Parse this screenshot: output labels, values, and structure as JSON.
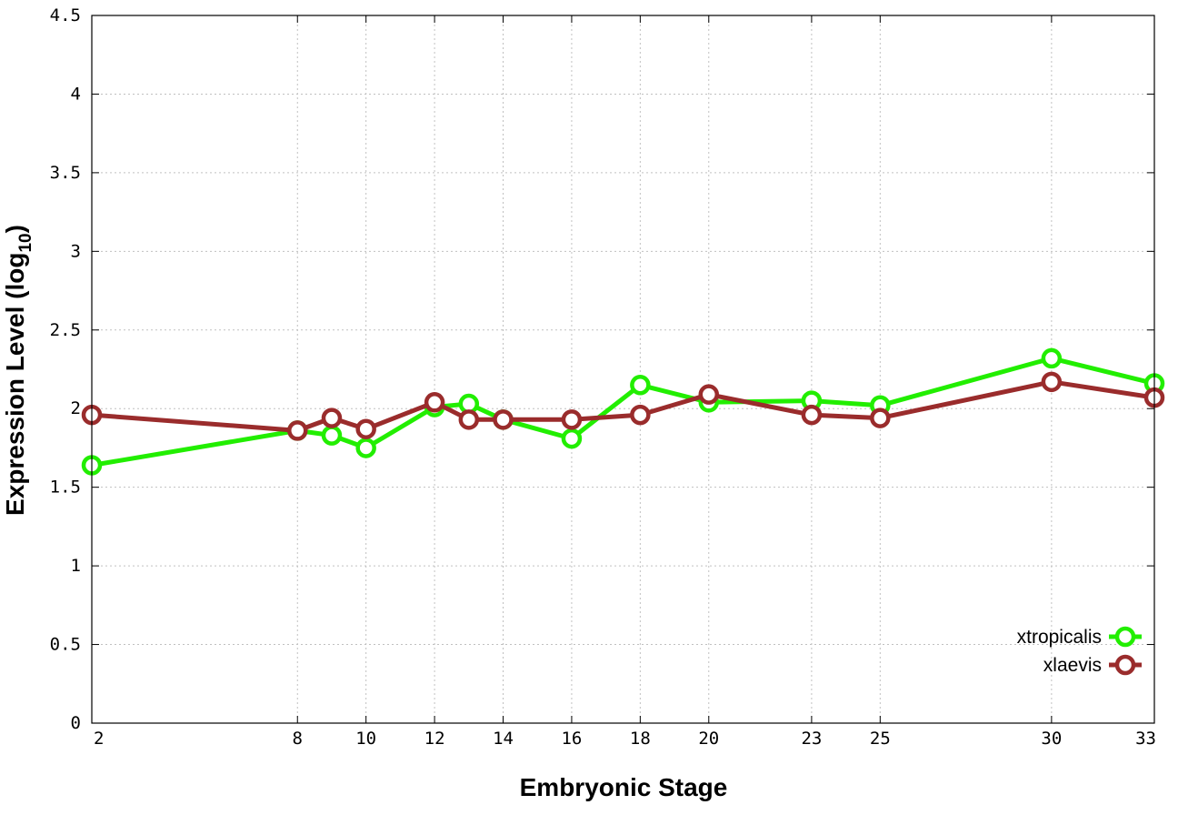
{
  "chart_data": {
    "type": "line",
    "title": "",
    "xlabel": "Embryonic Stage",
    "ylabel_main": "Expression Level (log",
    "ylabel_sub": "10",
    "ylabel_close": ")",
    "x_ticks": [
      2,
      8,
      10,
      12,
      14,
      16,
      18,
      20,
      23,
      25,
      30,
      33
    ],
    "y_ticks": [
      "0",
      "0.5",
      "1",
      "1.5",
      "2",
      "2.5",
      "3",
      "3.5",
      "4",
      "4.5"
    ],
    "xlim": [
      2,
      33
    ],
    "ylim": [
      0,
      4.5
    ],
    "grid": true,
    "legend_position": "bottom-right",
    "series": [
      {
        "name": "xtropicalis",
        "color": "#22ee00",
        "x": [
          2,
          8,
          9,
          10,
          12,
          13,
          14,
          16,
          18,
          20,
          23,
          25,
          30,
          33
        ],
        "y": [
          1.64,
          1.86,
          1.83,
          1.75,
          2.01,
          2.03,
          1.93,
          1.81,
          2.15,
          2.04,
          2.05,
          2.02,
          2.32,
          2.16
        ]
      },
      {
        "name": "xlaevis",
        "color": "#9a2c2c",
        "x": [
          2,
          8,
          9,
          10,
          12,
          13,
          14,
          16,
          18,
          20,
          23,
          25,
          30,
          33
        ],
        "y": [
          1.96,
          1.86,
          1.94,
          1.87,
          2.04,
          1.93,
          1.93,
          1.93,
          1.96,
          2.09,
          1.96,
          1.94,
          2.17,
          2.07
        ]
      }
    ]
  }
}
